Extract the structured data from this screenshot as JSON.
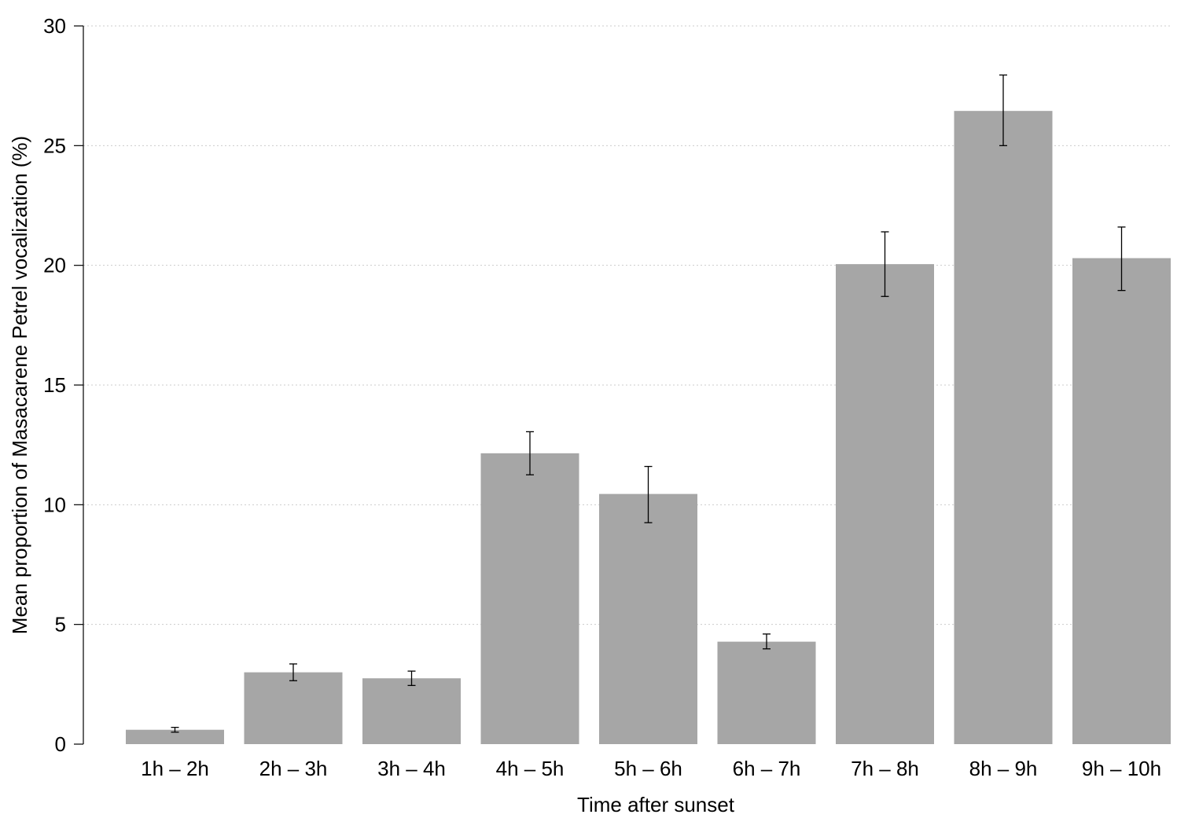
{
  "colors": {
    "bar": "#a6a6a6",
    "error_bar": "#000000",
    "grid": "#cccccc",
    "axis": "#000000"
  },
  "chart_data": {
    "type": "bar",
    "title": "",
    "xlabel": "Time after sunset",
    "ylabel": "Mean proportion of Masacarene Petrel vocalization (%)",
    "ylim": [
      0,
      30
    ],
    "yticks": [
      0,
      5,
      10,
      15,
      20,
      25,
      30
    ],
    "grid": "horizontal dotted",
    "legend": "none",
    "categories": [
      "1h – 2h",
      "2h – 3h",
      "3h – 4h",
      "4h – 5h",
      "5h – 6h",
      "6h – 7h",
      "7h – 8h",
      "8h – 9h",
      "9h – 10h"
    ],
    "values": [
      0.6,
      3.0,
      2.75,
      12.15,
      10.45,
      4.28,
      20.05,
      26.45,
      20.3
    ],
    "error_low": [
      0.5,
      2.65,
      2.45,
      11.25,
      9.25,
      3.98,
      18.7,
      25.0,
      18.95
    ],
    "error_high": [
      0.7,
      3.35,
      3.05,
      13.05,
      11.6,
      4.6,
      21.4,
      27.95,
      21.6
    ]
  }
}
